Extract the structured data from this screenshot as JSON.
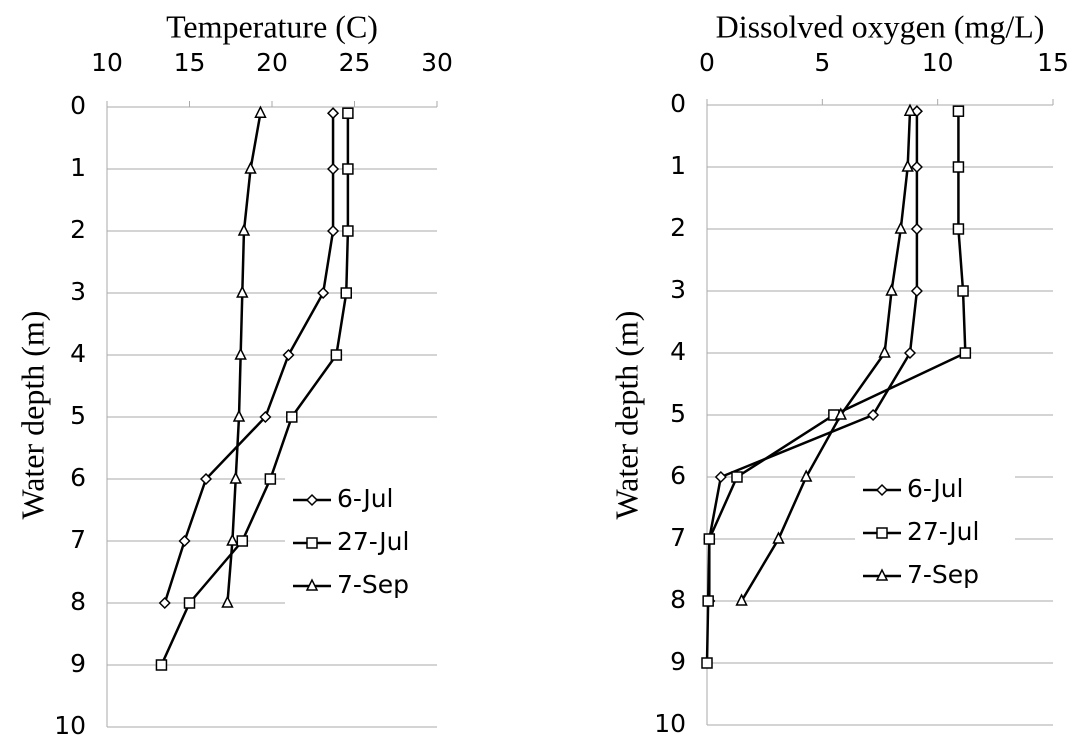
{
  "chart_data": [
    {
      "type": "line",
      "title": "Temperature (C)",
      "ylabel": "Water depth (m)",
      "xlim": [
        10,
        30
      ],
      "xticks": [
        10,
        15,
        20,
        25,
        30
      ],
      "ylim": [
        0,
        10
      ],
      "yticks": [
        0,
        1,
        2,
        3,
        4,
        5,
        6,
        7,
        8,
        9,
        10
      ],
      "y_inverted": true,
      "grid": true,
      "legend": "lower right",
      "series": [
        {
          "name": "6-Jul",
          "color": "#000000",
          "marker": "diamond",
          "x": [
            23.7,
            23.7,
            23.7,
            23.1,
            21.0,
            19.6,
            16.0,
            14.7,
            13.5
          ],
          "y": [
            0.1,
            1,
            2,
            3,
            4,
            5,
            6,
            7,
            8
          ]
        },
        {
          "name": "27-Jul",
          "color": "#000000",
          "marker": "square",
          "x": [
            24.6,
            24.6,
            24.6,
            24.5,
            23.9,
            21.2,
            19.9,
            18.2,
            15.0,
            13.3
          ],
          "y": [
            0.1,
            1,
            2,
            3,
            4,
            5,
            6,
            7,
            8,
            9
          ]
        },
        {
          "name": "7-Sep",
          "color": "#000000",
          "marker": "triangle",
          "x": [
            19.3,
            18.7,
            18.3,
            18.2,
            18.1,
            18.0,
            17.8,
            17.6,
            17.3
          ],
          "y": [
            0.1,
            1,
            2,
            3,
            4,
            5,
            6,
            7,
            8
          ]
        }
      ]
    },
    {
      "type": "line",
      "title": "Dissolved oxygen (mg/L)",
      "ylabel": "Water depth (m)",
      "xlim": [
        0,
        15
      ],
      "xticks": [
        0,
        5,
        10,
        15
      ],
      "ylim": [
        0,
        10
      ],
      "yticks": [
        0,
        1,
        2,
        3,
        4,
        5,
        6,
        7,
        8,
        9,
        10
      ],
      "y_inverted": true,
      "grid": true,
      "legend": "lower right",
      "series": [
        {
          "name": "6-Jul",
          "color": "#000000",
          "marker": "diamond",
          "x": [
            9.1,
            9.1,
            9.1,
            9.1,
            8.8,
            7.2,
            0.6,
            0.1,
            0.1
          ],
          "y": [
            0.1,
            1,
            2,
            3,
            4,
            5,
            6,
            7,
            8
          ]
        },
        {
          "name": "27-Jul",
          "color": "#000000",
          "marker": "square",
          "x": [
            10.9,
            10.9,
            10.9,
            11.1,
            11.2,
            5.5,
            1.3,
            0.1,
            0.05,
            0
          ],
          "y": [
            0.1,
            1,
            2,
            3,
            4,
            5,
            6,
            7,
            8,
            9
          ]
        },
        {
          "name": "7-Sep",
          "color": "#000000",
          "marker": "triangle",
          "x": [
            8.8,
            8.7,
            8.4,
            8.0,
            7.7,
            5.8,
            4.3,
            3.1,
            1.5
          ],
          "y": [
            0.1,
            1,
            2,
            3,
            4,
            5,
            6,
            7,
            8
          ]
        }
      ]
    }
  ]
}
